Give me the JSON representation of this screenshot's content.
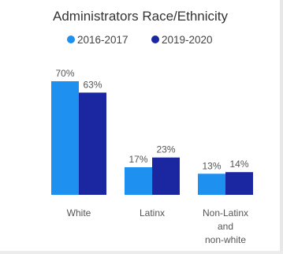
{
  "chart_data": {
    "type": "bar",
    "title": "Administrators Race/Ethnicity",
    "categories": [
      "White",
      "Latinx",
      "Non-Latinx and non-white"
    ],
    "category_lines": [
      [
        "White"
      ],
      [
        "Latinx"
      ],
      [
        "Non-Latinx",
        "and",
        "non-white"
      ]
    ],
    "series": [
      {
        "name": "2016-2017",
        "color": "#1E90F0",
        "values": [
          70,
          17,
          13
        ],
        "labels": [
          "70%",
          "17%",
          "13%"
        ]
      },
      {
        "name": "2019-2020",
        "color": "#1A27A0",
        "values": [
          63,
          23,
          14
        ],
        "labels": [
          "63%",
          "23%",
          "14%"
        ]
      }
    ],
    "ylim": [
      0,
      70
    ],
    "grid": false,
    "legend_position": "top-center",
    "xlabel": "",
    "ylabel": ""
  }
}
